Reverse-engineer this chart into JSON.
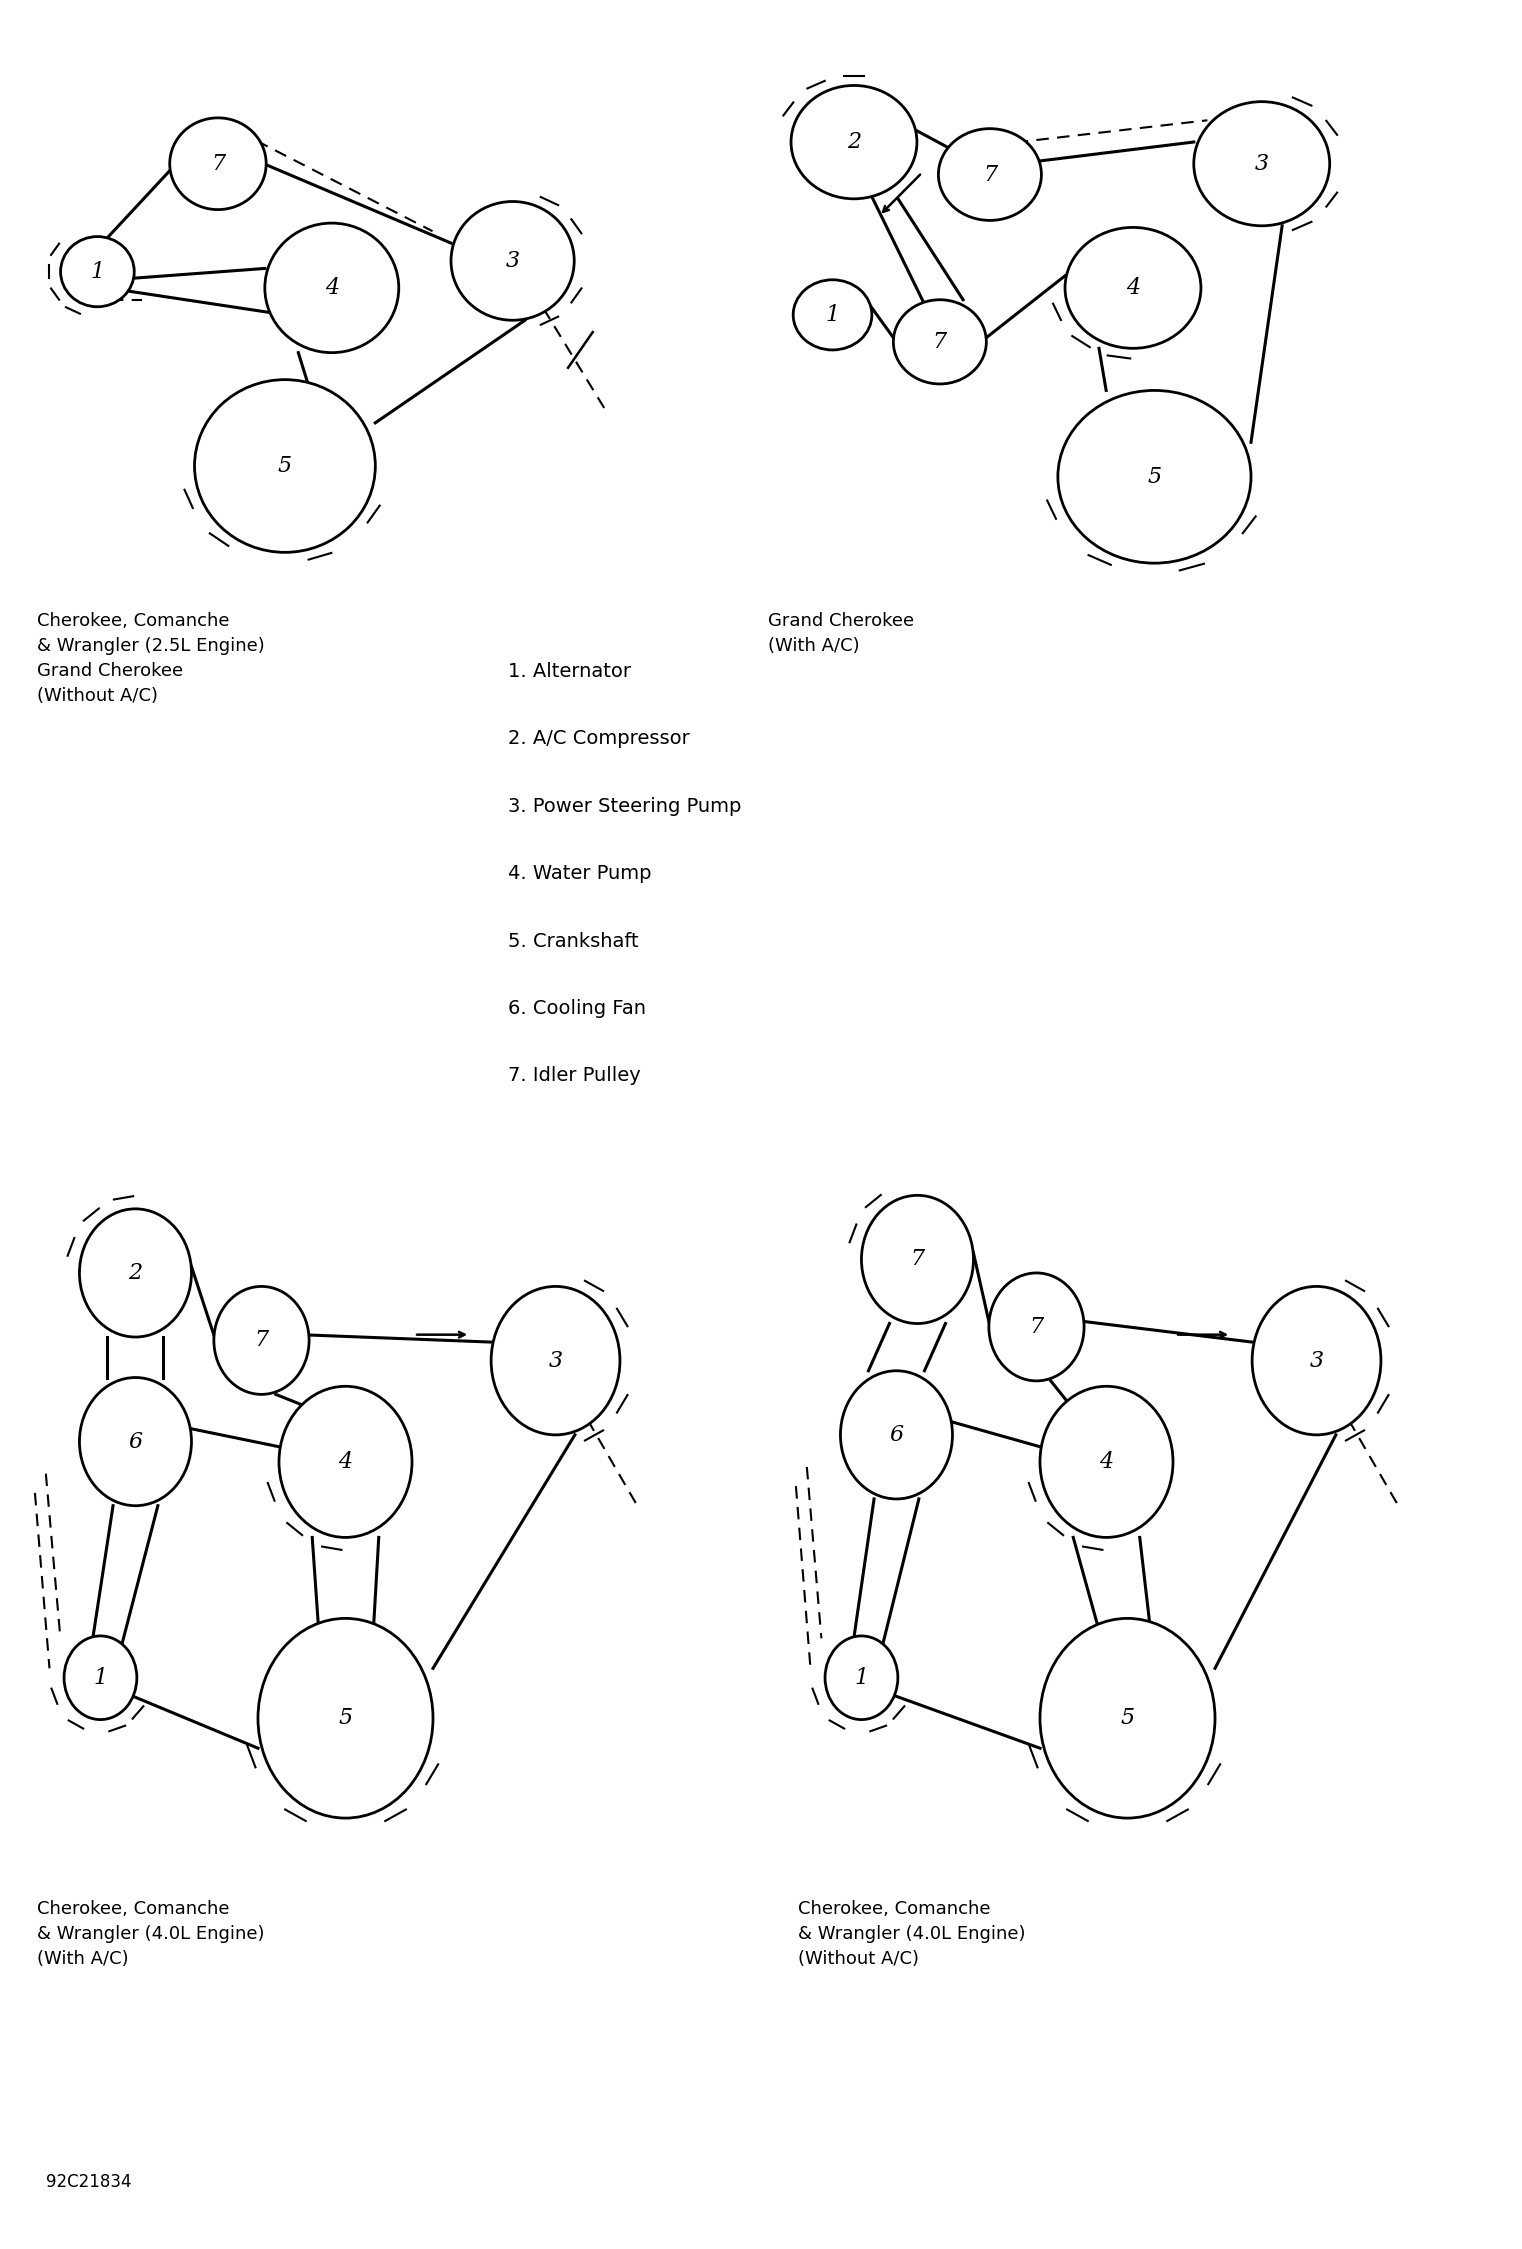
{
  "bg_color": "#ffffff",
  "diagram1": {
    "title": "Cherokee, Comanche\n& Wrangler (2.5L Engine)\nGrand Cherokee\n(Without A/C)"
  },
  "diagram2": {
    "title": "Grand Cherokee\n(With A/C)"
  },
  "diagram3": {
    "title": "Cherokee, Comanche\n& Wrangler (4.0L Engine)\n(With A/C)"
  },
  "diagram4": {
    "title": "Cherokee, Comanche\n& Wrangler (4.0L Engine)\n(Without A/C)"
  },
  "legend": [
    "1. Alternator",
    "2. A/C Compressor",
    "3. Power Steering Pump",
    "4. Water Pump",
    "5. Crankshaft",
    "6. Cooling Fan",
    "7. Idler Pulley"
  ],
  "footer": "92C21834"
}
